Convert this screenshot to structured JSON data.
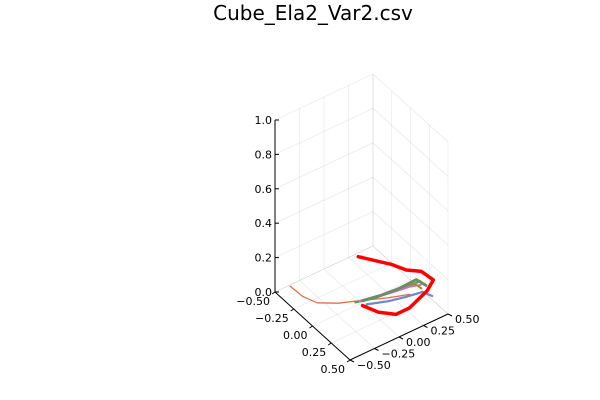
{
  "chart_data": {
    "type": "line3d",
    "title": "Cube_Ela2_Var2.csv",
    "x_ticks": [
      "−0.50",
      "−0.25",
      "0.00",
      "0.25",
      "0.50"
    ],
    "x_tick_values": [
      -0.5,
      -0.25,
      0,
      0.25,
      0.5
    ],
    "y_ticks": [
      "−0.50",
      "−0.25",
      "0.00",
      "0.25",
      "0.50"
    ],
    "y_tick_values": [
      -0.5,
      -0.25,
      0,
      0.25,
      0.5
    ],
    "z_ticks": [
      "0.0",
      "0.2",
      "0.4",
      "0.6",
      "0.8",
      "1.0"
    ],
    "z_tick_values": [
      0,
      0.2,
      0.4,
      0.6,
      0.8,
      1.0
    ],
    "xlim": [
      -0.5,
      0.5
    ],
    "ylim": [
      -0.5,
      0.5
    ],
    "zlim": [
      0,
      1
    ],
    "grid": true,
    "legend": "none",
    "series": [
      {
        "color": "#e26f46",
        "width": 1.3,
        "points": [
          [
            -0.27,
            -0.52,
            0.13
          ],
          [
            -0.2,
            -0.45,
            0.08
          ],
          [
            -0.12,
            -0.36,
            0.05
          ],
          [
            -0.02,
            -0.22,
            0.05
          ],
          [
            0.1,
            -0.05,
            0.07
          ],
          [
            0.22,
            0.1,
            0.09
          ],
          [
            0.32,
            0.25,
            0.11
          ]
        ]
      },
      {
        "color": "#3da44d",
        "width": 2,
        "points": [
          [
            0.05,
            -0.1,
            0.05
          ],
          [
            0.14,
            0.0,
            0.08
          ],
          [
            0.23,
            0.12,
            0.12
          ],
          [
            0.3,
            0.24,
            0.15
          ],
          [
            0.34,
            0.34,
            0.17
          ]
        ]
      },
      {
        "color": "#c271d2",
        "width": 2,
        "points": [
          [
            0.07,
            -0.08,
            0.06
          ],
          [
            0.16,
            0.03,
            0.09
          ],
          [
            0.24,
            0.14,
            0.12
          ],
          [
            0.31,
            0.25,
            0.15
          ],
          [
            0.36,
            0.33,
            0.16
          ]
        ]
      },
      {
        "color": "#ac8d18",
        "width": 2,
        "points": [
          [
            0.09,
            -0.05,
            0.06
          ],
          [
            0.18,
            0.06,
            0.1
          ],
          [
            0.26,
            0.17,
            0.14
          ],
          [
            0.33,
            0.28,
            0.17
          ],
          [
            0.38,
            0.32,
            0.15
          ]
        ]
      },
      {
        "color": "#6b8e64",
        "width": 3,
        "points": [
          [
            0.1,
            -0.06,
            0.07
          ],
          [
            0.2,
            0.06,
            0.11
          ],
          [
            0.28,
            0.18,
            0.15
          ],
          [
            0.34,
            0.3,
            0.19
          ],
          [
            0.39,
            0.36,
            0.16
          ]
        ]
      },
      {
        "color": "#6f88c9",
        "width": 2.2,
        "points": [
          [
            0.12,
            -0.04,
            0.05
          ],
          [
            0.22,
            0.1,
            0.07
          ],
          [
            0.31,
            0.22,
            0.1
          ],
          [
            0.37,
            0.34,
            0.12
          ],
          [
            0.42,
            0.4,
            0.1
          ]
        ]
      },
      {
        "color": "#ff0000",
        "width": 3.5,
        "points": [
          [
            -0.33,
            0.22,
            0.08
          ],
          [
            -0.05,
            0.35,
            0.11
          ],
          [
            0.1,
            0.38,
            0.13
          ],
          [
            0.25,
            0.42,
            0.17
          ],
          [
            0.37,
            0.45,
            0.16
          ],
          [
            0.38,
            0.38,
            0.12
          ],
          [
            0.35,
            0.22,
            0.05
          ],
          [
            0.3,
            0.12,
            0.02
          ],
          [
            0.2,
            0.02,
            0.02
          ],
          [
            0.08,
            -0.05,
            0.03
          ]
        ]
      }
    ]
  }
}
